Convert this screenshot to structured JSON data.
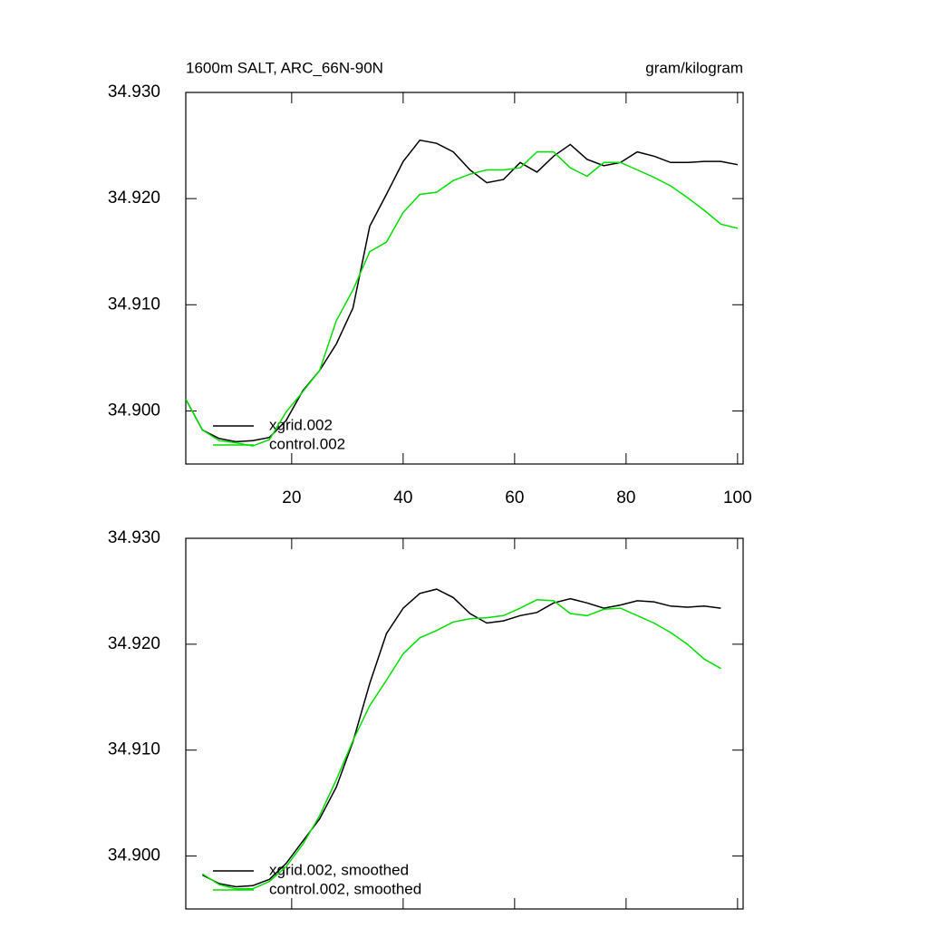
{
  "chart_data": [
    {
      "type": "line",
      "title": "1600m SALT, ARC_66N-90N",
      "title_right": "gram/kilogram",
      "x": [
        1,
        4,
        7,
        10,
        13,
        16,
        19,
        22,
        25,
        28,
        31,
        34,
        37,
        40,
        43,
        46,
        49,
        52,
        55,
        58,
        61,
        64,
        67,
        70,
        73,
        76,
        79,
        82,
        85,
        88,
        91,
        94,
        97,
        100
      ],
      "series": [
        {
          "name": "xgrid.002",
          "color": "#000000",
          "values": [
            34.9011,
            34.8982,
            34.8974,
            34.8971,
            34.8972,
            34.8975,
            34.8991,
            34.9019,
            34.9038,
            34.9063,
            34.9097,
            34.9174,
            34.9204,
            34.9235,
            34.9255,
            34.9252,
            34.9244,
            34.9227,
            34.9215,
            34.9218,
            34.9234,
            34.9225,
            34.924,
            34.9251,
            34.9237,
            34.9231,
            34.9234,
            34.9244,
            34.924,
            34.9234,
            34.9234,
            34.9235,
            34.9235,
            34.9232
          ]
        },
        {
          "name": "control.002",
          "color": "#00e000",
          "values": [
            34.9011,
            34.8982,
            34.8972,
            34.897,
            34.8967,
            34.8973,
            34.8999,
            34.9018,
            34.9038,
            34.9085,
            34.9114,
            34.915,
            34.9159,
            34.9187,
            34.9204,
            34.9206,
            34.9217,
            34.9223,
            34.9227,
            34.9227,
            34.9229,
            34.9244,
            34.9244,
            34.9229,
            34.9221,
            34.9234,
            34.9234,
            34.9227,
            34.922,
            34.9212,
            34.9201,
            34.9189,
            34.9176,
            34.9172
          ]
        }
      ],
      "xlim": [
        1,
        101
      ],
      "ylim": [
        34.895,
        34.93
      ],
      "xticks": [
        20,
        40,
        60,
        80,
        100
      ],
      "yticks": [
        {
          "value": 34.93,
          "label": "34.930"
        },
        {
          "value": 34.92,
          "label": "34.920"
        },
        {
          "value": 34.91,
          "label": "34.910"
        },
        {
          "value": 34.9,
          "label": "34.900"
        }
      ],
      "legend": "lower left",
      "xtick_labels": true
    },
    {
      "type": "line",
      "x": [
        4,
        7,
        10,
        13,
        16,
        19,
        22,
        25,
        28,
        31,
        34,
        37,
        40,
        43,
        46,
        49,
        52,
        55,
        58,
        61,
        64,
        67,
        70,
        73,
        76,
        79,
        82,
        85,
        88,
        91,
        94,
        97
      ],
      "series": [
        {
          "name": "xgrid.002, smoothed",
          "color": "#000000",
          "values": [
            34.8982,
            34.8974,
            34.8971,
            34.8972,
            34.8978,
            34.8993,
            34.9014,
            34.9035,
            34.9065,
            34.9108,
            34.9163,
            34.921,
            34.9234,
            34.9248,
            34.9252,
            34.9244,
            34.9229,
            34.922,
            34.9222,
            34.9227,
            34.923,
            34.9239,
            34.9243,
            34.9239,
            34.9234,
            34.9237,
            34.9241,
            34.924,
            34.9236,
            34.9235,
            34.9236,
            34.9234
          ]
        },
        {
          "name": "control.002, smoothed",
          "color": "#00e000",
          "values": [
            34.8983,
            34.8973,
            34.8969,
            34.8969,
            34.8976,
            34.899,
            34.9011,
            34.9038,
            34.9072,
            34.9109,
            34.9142,
            34.9166,
            34.9191,
            34.9206,
            34.9213,
            34.9221,
            34.9224,
            34.9225,
            34.9227,
            34.9234,
            34.9242,
            34.9241,
            34.9229,
            34.9227,
            34.9233,
            34.9234,
            34.9227,
            34.922,
            34.9211,
            34.92,
            34.9186,
            34.9177
          ]
        }
      ],
      "xlim": [
        1,
        101
      ],
      "ylim": [
        34.895,
        34.93
      ],
      "xticks": [
        20,
        40,
        60,
        80,
        100
      ],
      "yticks": [
        {
          "value": 34.93,
          "label": "34.930"
        },
        {
          "value": 34.92,
          "label": "34.920"
        },
        {
          "value": 34.91,
          "label": "34.910"
        },
        {
          "value": 34.9,
          "label": "34.900"
        }
      ],
      "legend": "lower left",
      "xtick_labels": false
    }
  ]
}
